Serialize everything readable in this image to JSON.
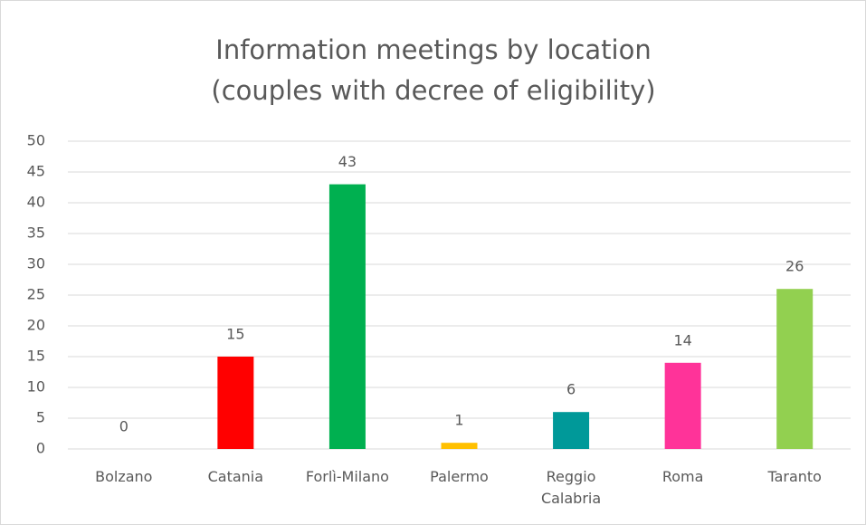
{
  "chart_data": {
    "type": "bar",
    "title": "Information meetings by location (couples with decree of eligibility)",
    "categories": [
      "Bolzano",
      "Catania",
      "Forlì-Milano",
      "Palermo",
      "Reggio Calabria",
      "Roma",
      "Taranto"
    ],
    "values": [
      0,
      15,
      43,
      1,
      6,
      14,
      26
    ],
    "colors": [
      "#4472c4",
      "#ff0000",
      "#00b050",
      "#ffc000",
      "#009999",
      "#ff3399",
      "#92d050"
    ],
    "ylim": [
      0,
      50
    ],
    "yticks": [
      0,
      5,
      10,
      15,
      20,
      25,
      30,
      35,
      40,
      45,
      50
    ],
    "grid": true
  }
}
